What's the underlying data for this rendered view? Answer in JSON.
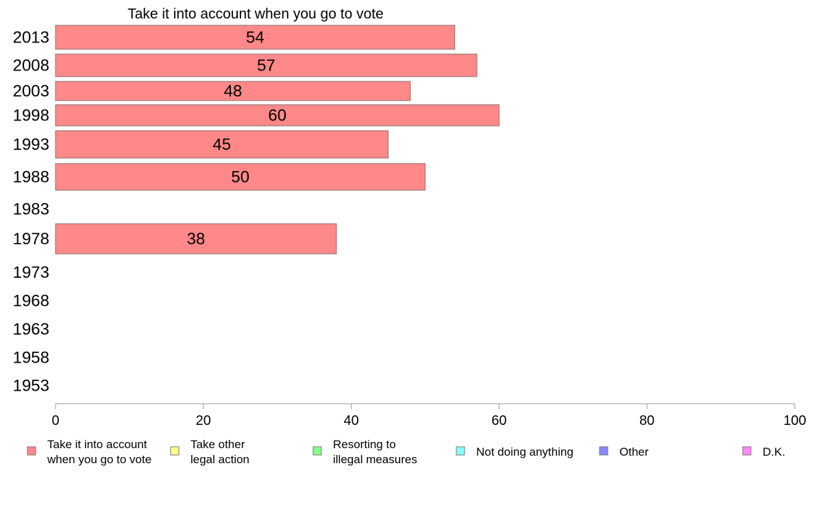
{
  "chart_data": {
    "type": "bar",
    "orientation": "horizontal",
    "title": "Take it into account when you go to vote",
    "categories": [
      "2013",
      "2008",
      "2003",
      "1998",
      "1993",
      "1988",
      "1983",
      "1978",
      "1973",
      "1968",
      "1963",
      "1958",
      "1953"
    ],
    "series": [
      {
        "name": "Take it into account when you go to vote",
        "color": "#ff8888",
        "values": [
          54,
          57,
          48,
          60,
          45,
          50,
          null,
          38,
          null,
          null,
          null,
          null,
          null
        ]
      }
    ],
    "xlim": [
      0,
      100
    ],
    "xticks": [
      "0",
      "20",
      "40",
      "60",
      "80",
      "100"
    ],
    "grid": false,
    "legend_position": "bottom",
    "legend": [
      {
        "label_lines": [
          "Take it into account",
          "when you go to vote"
        ],
        "color": "#ff8888"
      },
      {
        "label_lines": [
          "Take other",
          "legal action"
        ],
        "color": "#ffff88"
      },
      {
        "label_lines": [
          "Resorting to",
          "illegal measures"
        ],
        "color": "#88ff88"
      },
      {
        "label_lines": [
          "Not doing anything"
        ],
        "color": "#88ffff"
      },
      {
        "label_lines": [
          "Other"
        ],
        "color": "#8888ff"
      },
      {
        "label_lines": [
          "D.K."
        ],
        "color": "#ff88ff"
      }
    ]
  }
}
